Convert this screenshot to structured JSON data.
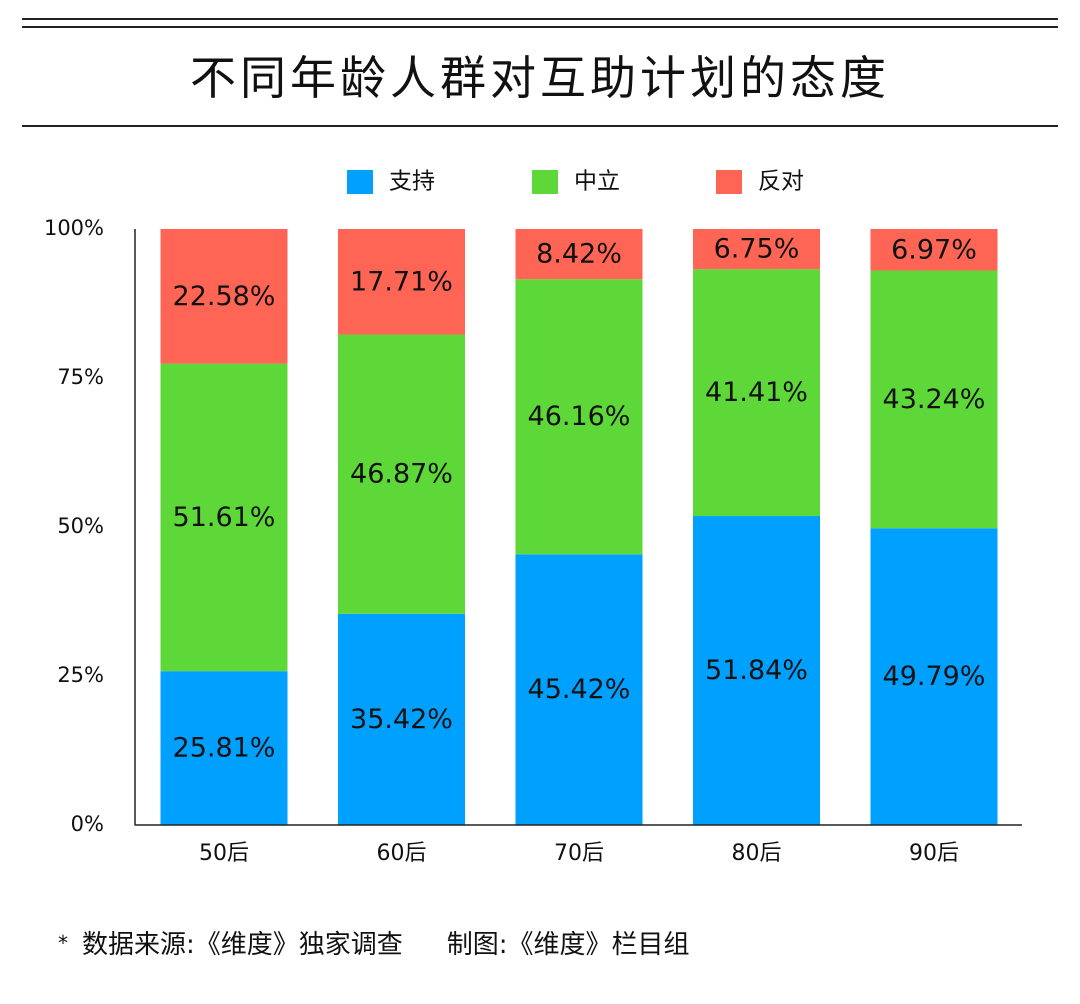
{
  "title": "不同年龄人群对互助计划的态度",
  "footer": {
    "marker": "*",
    "source": "数据来源:《维度》独家调查",
    "credit": "制图:《维度》栏目组"
  },
  "chart_data": {
    "type": "bar",
    "stacked": true,
    "categories": [
      "50后",
      "60后",
      "70后",
      "80后",
      "90后"
    ],
    "series": [
      {
        "name": "支持",
        "color": "#00a0ff",
        "values": [
          25.81,
          35.42,
          45.42,
          51.84,
          49.79
        ],
        "labels": [
          "25.81%",
          "35.42%",
          "45.42%",
          "51.84%",
          "49.79%"
        ]
      },
      {
        "name": "中立",
        "color": "#5ed838",
        "values": [
          51.61,
          46.87,
          46.16,
          41.41,
          43.24
        ],
        "labels": [
          "51.61%",
          "46.87%",
          "46.16%",
          "41.41%",
          "43.24%"
        ]
      },
      {
        "name": "反对",
        "color": "#fe6555",
        "values": [
          22.58,
          17.71,
          8.42,
          6.75,
          6.97
        ],
        "labels": [
          "22.58%",
          "17.71%",
          "8.42%",
          "6.75%",
          "6.97%"
        ]
      }
    ],
    "yticks": [
      "0%",
      "25%",
      "50%",
      "75%",
      "100%"
    ],
    "ylim": [
      0,
      100
    ],
    "legend_position": "top-center",
    "grid": false
  }
}
